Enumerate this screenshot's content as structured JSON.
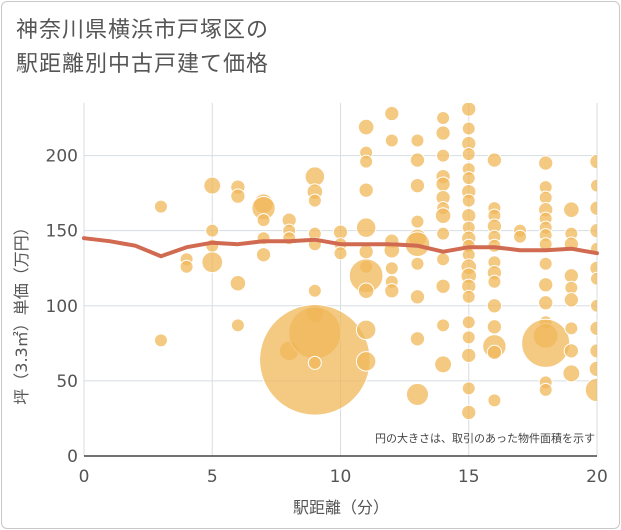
{
  "title": "神奈川県横浜市戸塚区の\n駅距離別中古戸建て価格",
  "colors": {
    "bubble": "#f0b758",
    "bubble_stroke": "#ffffff",
    "line": "#d06a50",
    "grid": "#d7dde3",
    "plot_bg": "#ffffff"
  },
  "chart_data": {
    "type": "scatter",
    "title": "神奈川県横浜市戸塚区の\n駅距離別中古戸建て価格",
    "xlabel": "駅距離（分）",
    "ylabel": "坪（3.3㎡）単価（万円）",
    "xlim": [
      0,
      20
    ],
    "ylim": [
      0,
      235
    ],
    "xticks": [
      0,
      5,
      10,
      15,
      20
    ],
    "yticks": [
      0,
      50,
      100,
      150,
      200
    ],
    "grid": true,
    "note": "円の大きさは、取引のあった物件面積を示す",
    "bubbles": [
      {
        "x": 3,
        "y": 166,
        "s": 1
      },
      {
        "x": 3,
        "y": 77,
        "s": 1
      },
      {
        "x": 4,
        "y": 131,
        "s": 1
      },
      {
        "x": 4,
        "y": 126,
        "s": 1
      },
      {
        "x": 5,
        "y": 180,
        "s": 1.3
      },
      {
        "x": 5,
        "y": 150,
        "s": 1
      },
      {
        "x": 5,
        "y": 140,
        "s": 1
      },
      {
        "x": 5,
        "y": 129,
        "s": 1.6
      },
      {
        "x": 6,
        "y": 179,
        "s": 1.1
      },
      {
        "x": 6,
        "y": 173,
        "s": 1.1
      },
      {
        "x": 6,
        "y": 115,
        "s": 1.2
      },
      {
        "x": 6,
        "y": 87,
        "s": 1
      },
      {
        "x": 7,
        "y": 168,
        "s": 1.5
      },
      {
        "x": 7,
        "y": 165,
        "s": 1.8
      },
      {
        "x": 7,
        "y": 157,
        "s": 1
      },
      {
        "x": 7,
        "y": 145,
        "s": 1
      },
      {
        "x": 7,
        "y": 134,
        "s": 1.1
      },
      {
        "x": 8,
        "y": 157,
        "s": 1.1
      },
      {
        "x": 8,
        "y": 150,
        "s": 1
      },
      {
        "x": 8,
        "y": 145,
        "s": 1
      },
      {
        "x": 8,
        "y": 70,
        "s": 1.5
      },
      {
        "x": 9,
        "y": 186,
        "s": 1.5
      },
      {
        "x": 9,
        "y": 176,
        "s": 1.2
      },
      {
        "x": 9,
        "y": 170,
        "s": 1
      },
      {
        "x": 9,
        "y": 148,
        "s": 1
      },
      {
        "x": 9,
        "y": 141,
        "s": 1
      },
      {
        "x": 9,
        "y": 110,
        "s": 1
      },
      {
        "x": 9,
        "y": 95,
        "s": 1.4
      },
      {
        "x": 9,
        "y": 82,
        "s": 4
      },
      {
        "x": 9,
        "y": 64,
        "s": 8.5
      },
      {
        "x": 9,
        "y": 62,
        "s": 1
      },
      {
        "x": 10,
        "y": 149,
        "s": 1.1
      },
      {
        "x": 10,
        "y": 141,
        "s": 1
      },
      {
        "x": 10,
        "y": 135,
        "s": 1
      },
      {
        "x": 11,
        "y": 219,
        "s": 1.2
      },
      {
        "x": 11,
        "y": 202,
        "s": 1
      },
      {
        "x": 11,
        "y": 196,
        "s": 1
      },
      {
        "x": 11,
        "y": 177,
        "s": 1.1
      },
      {
        "x": 11,
        "y": 152,
        "s": 1.5
      },
      {
        "x": 11,
        "y": 136,
        "s": 1.1
      },
      {
        "x": 11,
        "y": 126,
        "s": 1
      },
      {
        "x": 11,
        "y": 120,
        "s": 2.6
      },
      {
        "x": 11,
        "y": 110,
        "s": 1.2
      },
      {
        "x": 11,
        "y": 84,
        "s": 1.5
      },
      {
        "x": 11,
        "y": 63,
        "s": 1.5
      },
      {
        "x": 12,
        "y": 228,
        "s": 1.1
      },
      {
        "x": 12,
        "y": 210,
        "s": 1
      },
      {
        "x": 12,
        "y": 143,
        "s": 1.1
      },
      {
        "x": 12,
        "y": 137,
        "s": 1.2
      },
      {
        "x": 12,
        "y": 125,
        "s": 1
      },
      {
        "x": 12,
        "y": 116,
        "s": 1
      },
      {
        "x": 12,
        "y": 110,
        "s": 1.1
      },
      {
        "x": 13,
        "y": 210,
        "s": 1
      },
      {
        "x": 13,
        "y": 197,
        "s": 1.1
      },
      {
        "x": 13,
        "y": 180,
        "s": 1.1
      },
      {
        "x": 13,
        "y": 156,
        "s": 1
      },
      {
        "x": 13,
        "y": 145,
        "s": 1.4
      },
      {
        "x": 13,
        "y": 141,
        "s": 1.9
      },
      {
        "x": 13,
        "y": 128,
        "s": 1
      },
      {
        "x": 13,
        "y": 106,
        "s": 1.1
      },
      {
        "x": 13,
        "y": 78,
        "s": 1.1
      },
      {
        "x": 13,
        "y": 41,
        "s": 1.7
      },
      {
        "x": 14,
        "y": 225,
        "s": 1
      },
      {
        "x": 14,
        "y": 215,
        "s": 1.1
      },
      {
        "x": 14,
        "y": 200,
        "s": 1
      },
      {
        "x": 14,
        "y": 186,
        "s": 1.1
      },
      {
        "x": 14,
        "y": 181,
        "s": 1.1
      },
      {
        "x": 14,
        "y": 172,
        "s": 1.1
      },
      {
        "x": 14,
        "y": 165,
        "s": 1
      },
      {
        "x": 14,
        "y": 160,
        "s": 1.2
      },
      {
        "x": 14,
        "y": 148,
        "s": 1
      },
      {
        "x": 14,
        "y": 131,
        "s": 1
      },
      {
        "x": 14,
        "y": 113,
        "s": 1.1
      },
      {
        "x": 14,
        "y": 87,
        "s": 1
      },
      {
        "x": 14,
        "y": 61,
        "s": 1.3
      },
      {
        "x": 15,
        "y": 231,
        "s": 1.1
      },
      {
        "x": 15,
        "y": 218,
        "s": 1
      },
      {
        "x": 15,
        "y": 208,
        "s": 1.1
      },
      {
        "x": 15,
        "y": 201,
        "s": 1
      },
      {
        "x": 15,
        "y": 191,
        "s": 1
      },
      {
        "x": 15,
        "y": 185,
        "s": 1
      },
      {
        "x": 15,
        "y": 176,
        "s": 1.1
      },
      {
        "x": 15,
        "y": 170,
        "s": 1
      },
      {
        "x": 15,
        "y": 160,
        "s": 1.1
      },
      {
        "x": 15,
        "y": 152,
        "s": 1
      },
      {
        "x": 15,
        "y": 145,
        "s": 1.1
      },
      {
        "x": 15,
        "y": 140,
        "s": 1
      },
      {
        "x": 15,
        "y": 134,
        "s": 1
      },
      {
        "x": 15,
        "y": 126,
        "s": 1.2
      },
      {
        "x": 15,
        "y": 120,
        "s": 1.2
      },
      {
        "x": 15,
        "y": 113,
        "s": 1.1
      },
      {
        "x": 15,
        "y": 106,
        "s": 1
      },
      {
        "x": 15,
        "y": 89,
        "s": 1
      },
      {
        "x": 15,
        "y": 79,
        "s": 1
      },
      {
        "x": 15,
        "y": 67,
        "s": 1.1
      },
      {
        "x": 15,
        "y": 45,
        "s": 1
      },
      {
        "x": 15,
        "y": 29,
        "s": 1.1
      },
      {
        "x": 16,
        "y": 197,
        "s": 1.1
      },
      {
        "x": 16,
        "y": 165,
        "s": 1
      },
      {
        "x": 16,
        "y": 160,
        "s": 1
      },
      {
        "x": 16,
        "y": 153,
        "s": 1.1
      },
      {
        "x": 16,
        "y": 146,
        "s": 1
      },
      {
        "x": 16,
        "y": 140,
        "s": 1
      },
      {
        "x": 16,
        "y": 129,
        "s": 1
      },
      {
        "x": 16,
        "y": 122,
        "s": 1.1
      },
      {
        "x": 16,
        "y": 116,
        "s": 1
      },
      {
        "x": 16,
        "y": 100,
        "s": 1.1
      },
      {
        "x": 16,
        "y": 86,
        "s": 1.1
      },
      {
        "x": 16,
        "y": 73,
        "s": 1.8
      },
      {
        "x": 16,
        "y": 69,
        "s": 1.1
      },
      {
        "x": 16,
        "y": 37,
        "s": 1
      },
      {
        "x": 17,
        "y": 150,
        "s": 1
      },
      {
        "x": 17,
        "y": 146,
        "s": 1
      },
      {
        "x": 18,
        "y": 195,
        "s": 1.1
      },
      {
        "x": 18,
        "y": 179,
        "s": 1
      },
      {
        "x": 18,
        "y": 172,
        "s": 1
      },
      {
        "x": 18,
        "y": 164,
        "s": 1.1
      },
      {
        "x": 18,
        "y": 158,
        "s": 1
      },
      {
        "x": 18,
        "y": 152,
        "s": 1
      },
      {
        "x": 18,
        "y": 147,
        "s": 1
      },
      {
        "x": 18,
        "y": 141,
        "s": 1
      },
      {
        "x": 18,
        "y": 128,
        "s": 1
      },
      {
        "x": 18,
        "y": 114,
        "s": 1.1
      },
      {
        "x": 18,
        "y": 102,
        "s": 1.1
      },
      {
        "x": 18,
        "y": 89,
        "s": 1
      },
      {
        "x": 18,
        "y": 80,
        "s": 1.9
      },
      {
        "x": 18,
        "y": 75,
        "s": 3.7
      },
      {
        "x": 18,
        "y": 49,
        "s": 1
      },
      {
        "x": 18,
        "y": 44,
        "s": 1
      },
      {
        "x": 19,
        "y": 164,
        "s": 1.2
      },
      {
        "x": 19,
        "y": 148,
        "s": 1
      },
      {
        "x": 19,
        "y": 141,
        "s": 1.1
      },
      {
        "x": 19,
        "y": 120,
        "s": 1.1
      },
      {
        "x": 19,
        "y": 112,
        "s": 1
      },
      {
        "x": 19,
        "y": 104,
        "s": 1.1
      },
      {
        "x": 19,
        "y": 85,
        "s": 1
      },
      {
        "x": 19,
        "y": 70,
        "s": 1.1
      },
      {
        "x": 19,
        "y": 55,
        "s": 1.3
      },
      {
        "x": 20,
        "y": 196,
        "s": 1.1
      },
      {
        "x": 20,
        "y": 180,
        "s": 1
      },
      {
        "x": 20,
        "y": 165,
        "s": 1.1
      },
      {
        "x": 20,
        "y": 150,
        "s": 1.1
      },
      {
        "x": 20,
        "y": 138,
        "s": 1
      },
      {
        "x": 20,
        "y": 125,
        "s": 1.1
      },
      {
        "x": 20,
        "y": 118,
        "s": 1
      },
      {
        "x": 20,
        "y": 100,
        "s": 1
      },
      {
        "x": 20,
        "y": 85,
        "s": 1.1
      },
      {
        "x": 20,
        "y": 70,
        "s": 1.1
      },
      {
        "x": 20,
        "y": 58,
        "s": 1.2
      },
      {
        "x": 20,
        "y": 44,
        "s": 1.8
      }
    ],
    "trend": {
      "x": [
        0,
        1,
        2,
        3,
        4,
        5,
        6,
        7,
        8,
        9,
        10,
        11,
        12,
        13,
        14,
        15,
        16,
        17,
        18,
        19,
        20
      ],
      "y": [
        145,
        143,
        140,
        133,
        139,
        142,
        141,
        143,
        143,
        144,
        141,
        141,
        141,
        140,
        136,
        139,
        139,
        137,
        137,
        138,
        135
      ]
    }
  }
}
